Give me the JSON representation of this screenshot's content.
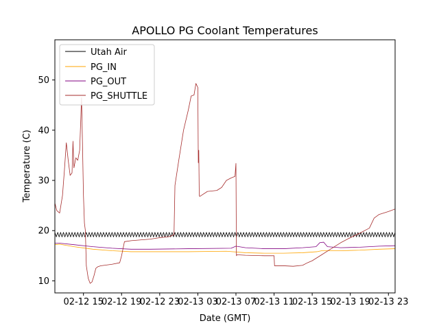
{
  "chart_data": {
    "type": "line",
    "title": "APOLLO PG Coolant Temperatures",
    "xlabel": "Date (GMT)",
    "ylabel": "Temperature (C)",
    "x_unit": "hours since 02-12 12:00 GMT",
    "xlim": [
      0,
      35.7
    ],
    "ylim": [
      7.6,
      58.0
    ],
    "xticks": [
      {
        "value": 3,
        "label": "02-12 15"
      },
      {
        "value": 7,
        "label": "02-12 19"
      },
      {
        "value": 11,
        "label": "02-12 23"
      },
      {
        "value": 15,
        "label": "02-13 03"
      },
      {
        "value": 19,
        "label": "02-13 07"
      },
      {
        "value": 23,
        "label": "02-13 11"
      },
      {
        "value": 27,
        "label": "02-13 15"
      },
      {
        "value": 31,
        "label": "02-13 19"
      },
      {
        "value": 35,
        "label": "02-13 23"
      }
    ],
    "yticks": [
      {
        "value": 10,
        "label": "10"
      },
      {
        "value": 20,
        "label": "20"
      },
      {
        "value": 30,
        "label": "30"
      },
      {
        "value": 40,
        "label": "40"
      },
      {
        "value": 50,
        "label": "50"
      }
    ],
    "legend_position": "top-left",
    "series": [
      {
        "name": "Utah Air",
        "color": "#000000",
        "oscillating": true,
        "baseline": 19.2,
        "amplitude": 0.45,
        "period": 0.3,
        "x": [
          0,
          35.7
        ],
        "y": [
          19.2,
          19.2
        ]
      },
      {
        "name": "PG_IN",
        "color": "#ffa500",
        "x": [
          0,
          0.5,
          2,
          4,
          6,
          8,
          10,
          14,
          18,
          20,
          22,
          24,
          26,
          27.5,
          28,
          30,
          32,
          34,
          35.7
        ],
        "y": [
          17.2,
          17.3,
          16.8,
          16.3,
          16.0,
          15.8,
          15.8,
          15.8,
          15.9,
          15.6,
          15.5,
          15.5,
          15.6,
          15.8,
          16.0,
          16.0,
          16.1,
          16.3,
          16.4
        ]
      },
      {
        "name": "PG_OUT",
        "color": "#800080",
        "x": [
          0,
          0.5,
          2,
          4,
          6,
          8,
          10,
          14,
          18.5,
          19,
          20,
          22,
          24,
          26,
          27.4,
          27.8,
          28.2,
          28.6,
          30,
          32,
          34,
          35.7
        ],
        "y": [
          17.5,
          17.5,
          17.2,
          16.8,
          16.5,
          16.3,
          16.3,
          16.4,
          16.5,
          16.9,
          16.6,
          16.4,
          16.4,
          16.6,
          16.8,
          17.6,
          17.7,
          16.8,
          16.6,
          16.7,
          16.9,
          17.0
        ]
      },
      {
        "name": "PG_SHUTTLE",
        "color": "#a52a2a",
        "x": [
          0,
          0.2,
          0.5,
          0.8,
          1.0,
          1.2,
          1.4,
          1.6,
          1.8,
          1.9,
          2.0,
          2.2,
          2.4,
          2.6,
          2.8,
          2.9,
          3.0,
          3.1,
          3.2,
          3.3,
          3.5,
          3.7,
          3.9,
          4.1,
          4.3,
          4.5,
          4.8,
          5.2,
          6.0,
          6.8,
          7.0,
          7.3,
          8.0,
          10.0,
          11.0,
          12.0,
          12.5,
          12.6,
          13.0,
          13.5,
          14.0,
          14.3,
          14.6,
          14.8,
          15.0,
          15.05,
          15.1,
          15.15,
          15.2,
          16.0,
          17.0,
          17.5,
          18.0,
          18.5,
          18.9,
          19.0,
          19.05,
          19.1,
          20.0,
          22.0,
          23.0,
          23.05,
          24.0,
          25.0,
          26.0,
          26.5,
          27.0,
          28.0,
          29.0,
          30.0,
          31.0,
          32.0,
          33.0,
          33.5,
          34.0,
          35.0,
          35.7
        ],
        "y": [
          25.5,
          24.0,
          23.5,
          27.0,
          32.0,
          37.5,
          34.0,
          31.0,
          31.5,
          37.8,
          32.5,
          34.5,
          34.0,
          36.0,
          46.5,
          37.0,
          27.0,
          21.5,
          20.0,
          13.0,
          10.5,
          9.5,
          9.8,
          11.0,
          12.5,
          12.8,
          13.0,
          13.1,
          13.3,
          13.6,
          15.0,
          17.8,
          18.0,
          18.3,
          18.6,
          18.8,
          19.2,
          29.0,
          34.0,
          40.0,
          44.0,
          46.8,
          47.0,
          49.3,
          48.5,
          33.5,
          36.0,
          27.0,
          26.8,
          27.8,
          28.0,
          28.6,
          30.0,
          30.5,
          30.8,
          33.4,
          15.0,
          15.2,
          15.1,
          15.0,
          15.0,
          13.0,
          13.0,
          12.9,
          13.1,
          13.6,
          14.0,
          15.2,
          16.4,
          17.6,
          18.6,
          19.5,
          20.5,
          22.5,
          23.2,
          23.8,
          24.3
        ]
      }
    ]
  }
}
